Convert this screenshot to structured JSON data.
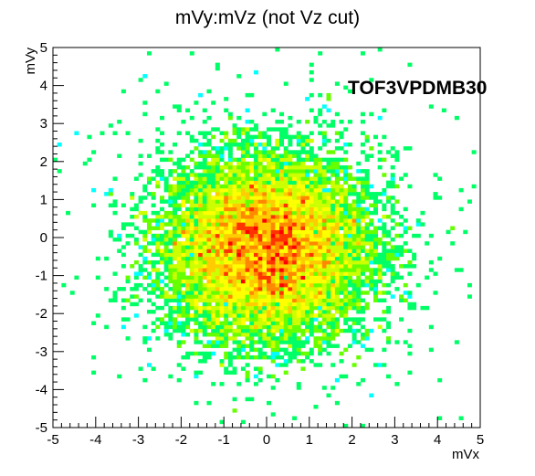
{
  "chart_data": {
    "type": "heatmap",
    "title": "mVy:mVz (not Vz cut)",
    "xlabel": "mVx",
    "ylabel": "mVy",
    "annotation": "TOF3VPDMB30",
    "xlim": [
      -5,
      5
    ],
    "ylim": [
      -5,
      5
    ],
    "x_ticks": [
      -5,
      -4,
      -3,
      -2,
      -1,
      0,
      1,
      2,
      3,
      4,
      5
    ],
    "y_ticks": [
      -5,
      -4,
      -3,
      -2,
      -1,
      0,
      1,
      2,
      3,
      4,
      5
    ],
    "bins": {
      "x": 100,
      "y": 100
    },
    "distribution": {
      "shape": "2D gaussian-like cluster",
      "center": [
        0.0,
        -0.25
      ],
      "sigma_x": 1.2,
      "sigma_y": 1.2,
      "peak_region": {
        "x": [
          -0.6,
          0.6
        ],
        "y": [
          -0.7,
          0.2
        ]
      }
    },
    "palette": [
      "#00ffff",
      "#00ff66",
      "#66ff00",
      "#ccff00",
      "#ffff00",
      "#ffcc00",
      "#ff8800",
      "#ff3300",
      "#ff0000"
    ],
    "grid": false,
    "legend": "none"
  }
}
